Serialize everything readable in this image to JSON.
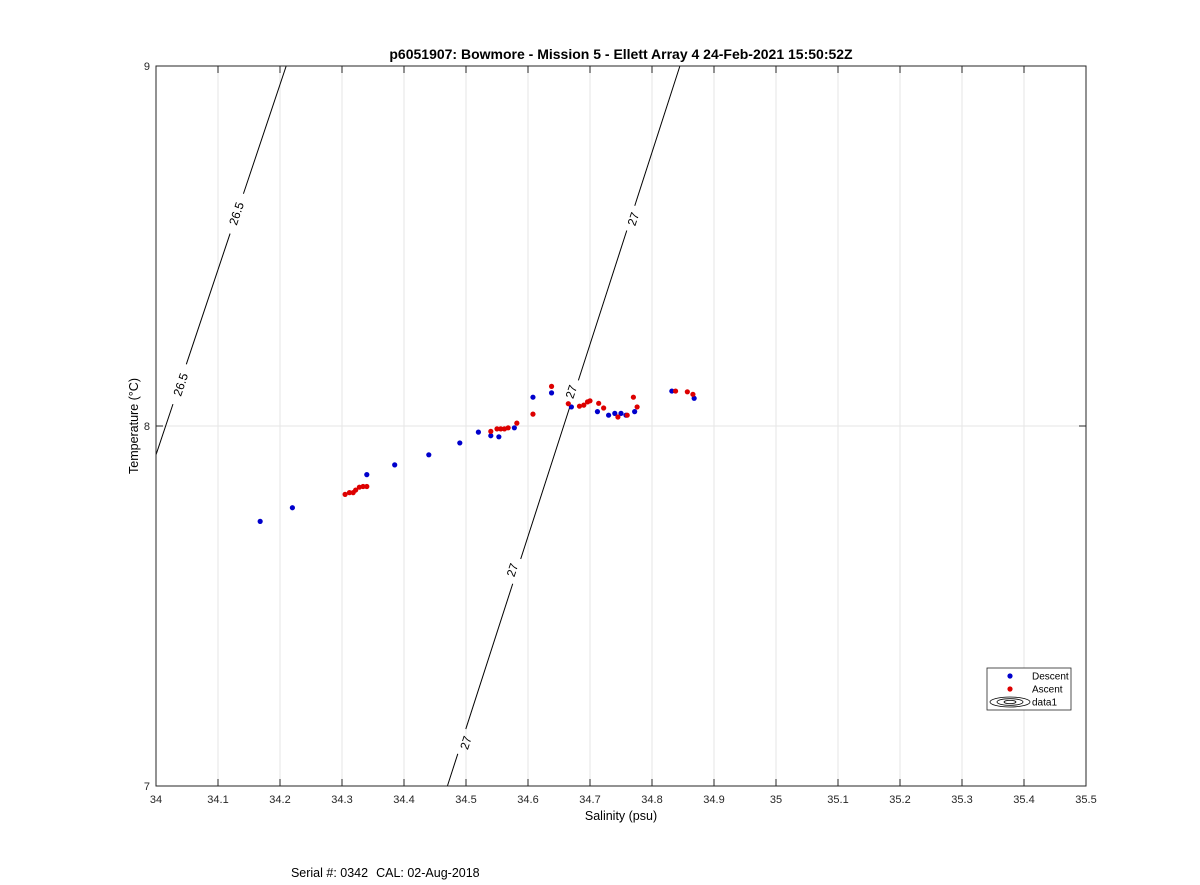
{
  "chart_data": {
    "type": "scatter",
    "title": "p6051907: Bowmore - Mission 5 - Ellett Array 4 24-Feb-2021 15:50:52Z",
    "xlabel": "Salinity (psu)",
    "ylabel": "Temperature (°C)",
    "xlim": [
      34,
      35.5
    ],
    "ylim": [
      7,
      9
    ],
    "x_ticks": [
      "34",
      "34.1",
      "34.2",
      "34.3",
      "34.4",
      "34.5",
      "34.6",
      "34.7",
      "34.8",
      "34.9",
      "35",
      "35.1",
      "35.2",
      "35.3",
      "35.4",
      "35.5"
    ],
    "y_ticks": [
      "7",
      "8",
      "9"
    ],
    "grid": true,
    "legend_position": "bottom-right",
    "series": [
      {
        "name": "Descent",
        "color": "#0000cc",
        "marker": "dot",
        "points": [
          [
            34.168,
            7.735
          ],
          [
            34.22,
            7.773
          ],
          [
            34.34,
            7.865
          ],
          [
            34.385,
            7.892
          ],
          [
            34.44,
            7.92
          ],
          [
            34.49,
            7.953
          ],
          [
            34.52,
            7.983
          ],
          [
            34.54,
            7.973
          ],
          [
            34.553,
            7.97
          ],
          [
            34.578,
            7.995
          ],
          [
            34.608,
            8.08
          ],
          [
            34.638,
            8.092
          ],
          [
            34.67,
            8.053
          ],
          [
            34.712,
            8.04
          ],
          [
            34.73,
            8.03
          ],
          [
            34.74,
            8.035
          ],
          [
            34.75,
            8.035
          ],
          [
            34.758,
            8.03
          ],
          [
            34.772,
            8.04
          ],
          [
            34.832,
            8.097
          ],
          [
            34.868,
            8.077
          ]
        ]
      },
      {
        "name": "Ascent",
        "color": "#dd0000",
        "marker": "dot",
        "points": [
          [
            34.305,
            7.81
          ],
          [
            34.312,
            7.815
          ],
          [
            34.318,
            7.815
          ],
          [
            34.322,
            7.822
          ],
          [
            34.328,
            7.83
          ],
          [
            34.334,
            7.832
          ],
          [
            34.34,
            7.832
          ],
          [
            34.54,
            7.985
          ],
          [
            34.55,
            7.992
          ],
          [
            34.556,
            7.992
          ],
          [
            34.562,
            7.992
          ],
          [
            34.568,
            7.995
          ],
          [
            34.582,
            8.008
          ],
          [
            34.608,
            8.033
          ],
          [
            34.638,
            8.11
          ],
          [
            34.665,
            8.062
          ],
          [
            34.683,
            8.055
          ],
          [
            34.69,
            8.058
          ],
          [
            34.696,
            8.067
          ],
          [
            34.7,
            8.07
          ],
          [
            34.714,
            8.063
          ],
          [
            34.722,
            8.05
          ],
          [
            34.745,
            8.025
          ],
          [
            34.76,
            8.03
          ],
          [
            34.77,
            8.08
          ],
          [
            34.776,
            8.053
          ],
          [
            34.838,
            8.097
          ],
          [
            34.857,
            8.095
          ],
          [
            34.866,
            8.088
          ]
        ]
      }
    ],
    "contours": [
      {
        "name": "data1",
        "level": "26.5",
        "points": [
          [
            34,
            7.92
          ],
          [
            34.21,
            9.0
          ]
        ],
        "labels": [
          [
            34.04,
            8.115,
            "26.5"
          ],
          [
            34.13,
            8.59,
            "26.5"
          ]
        ]
      },
      {
        "name": "data1",
        "level": "27",
        "points": [
          [
            34.47,
            7.0
          ],
          [
            34.845,
            9.0
          ]
        ],
        "labels": [
          [
            34.5,
            7.12,
            "27"
          ],
          [
            34.575,
            7.6,
            "27"
          ],
          [
            34.67,
            8.095,
            "27"
          ],
          [
            34.77,
            8.575,
            "27"
          ]
        ]
      }
    ],
    "legend": [
      {
        "label": "Descent",
        "marker": "blue-dot"
      },
      {
        "label": "Ascent",
        "marker": "red-dot"
      },
      {
        "label": "data1",
        "marker": "contour-ellipses"
      }
    ]
  },
  "footer": {
    "serial": "Serial #: 0342",
    "cal": "CAL: 02-Aug-2018"
  }
}
